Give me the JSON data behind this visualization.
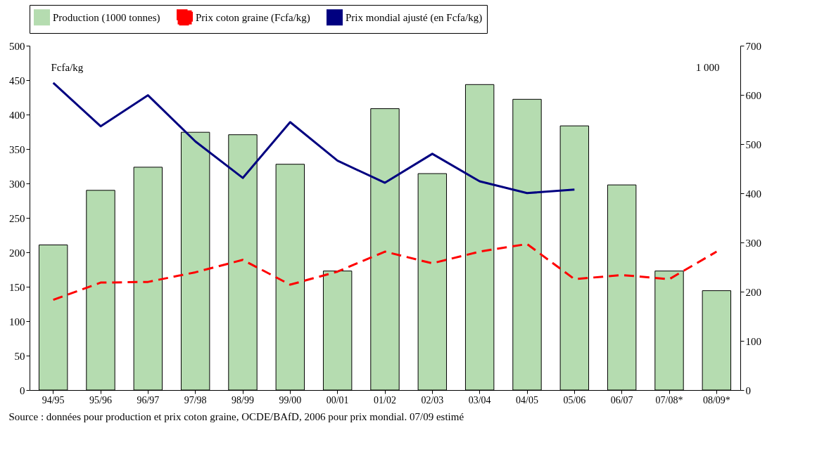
{
  "chart_data": {
    "type": "bar",
    "categories": [
      "94/95",
      "95/96",
      "96/97",
      "97/98",
      "98/99",
      "99/00",
      "00/01",
      "01/02",
      "02/03",
      "03/04",
      "04/05",
      "05/06",
      "06/07",
      "07/08*",
      "08/09*"
    ],
    "ylabel": "Fcfa/kg",
    "y2label": "1 000",
    "ylim": [
      0,
      500
    ],
    "yticks": [
      0,
      50,
      100,
      150,
      200,
      250,
      300,
      350,
      400,
      450,
      500
    ],
    "y2lim": [
      0,
      700
    ],
    "y2ticks": [
      0,
      100,
      200,
      300,
      400,
      500,
      600,
      700
    ],
    "series": [
      {
        "name": "Production (1000 tonnes)",
        "axis": "y2",
        "color": "#b5dcb0",
        "values": [
          295,
          406,
          453,
          524,
          519,
          459,
          242,
          572,
          440,
          621,
          591,
          537,
          417,
          242,
          202
        ]
      },
      {
        "name": "Prix coton graine (Fcfa/kg)",
        "type": "line",
        "line_style": "dashed",
        "color": "#ff0000",
        "values": [
          131,
          156,
          157,
          171,
          189,
          153,
          172,
          201,
          184,
          201,
          212,
          161,
          167,
          161,
          201
        ]
      },
      {
        "name": "Prix mondial ajusté (en Fcfa/kg)",
        "type": "line",
        "line_style": "solid",
        "color": "#000080",
        "values": [
          446,
          383,
          428,
          361,
          308,
          389,
          333,
          301,
          343,
          303,
          286,
          291,
          null,
          null,
          null
        ]
      }
    ],
    "legend": "top",
    "grid": false,
    "annotations": [
      "Source : données pour production et prix coton graine, OCDE/BAfD, 2006 pour prix mondial. 07/09 estimé"
    ]
  }
}
